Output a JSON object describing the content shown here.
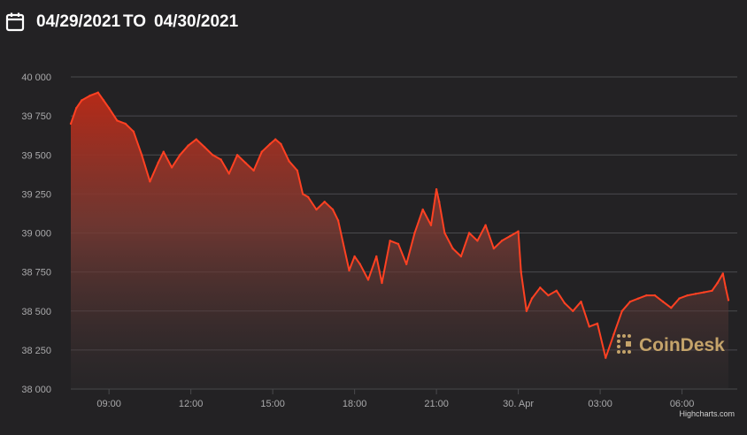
{
  "header": {
    "start_date": "04/29/2021",
    "to_label": "TO",
    "end_date": "04/30/2021",
    "icon": "calendar-icon"
  },
  "watermark": "CoinDesk",
  "credits": "Highcharts.com",
  "colors": {
    "background": "#232224",
    "line": "#ff4122",
    "area_top": "#b52a18",
    "grid": "#4a4a4d",
    "watermark": "#c4a36a"
  },
  "chart_data": {
    "type": "area",
    "title": "",
    "xlabel": "",
    "ylabel": "",
    "ylim": [
      38000,
      40000
    ],
    "grid": true,
    "yticks": [
      {
        "value": 40000,
        "label": "40 000"
      },
      {
        "value": 39750,
        "label": "39 750"
      },
      {
        "value": 39500,
        "label": "39 500"
      },
      {
        "value": 39250,
        "label": "39 250"
      },
      {
        "value": 39000,
        "label": "39 000"
      },
      {
        "value": 38750,
        "label": "38 750"
      },
      {
        "value": 38500,
        "label": "38 500"
      },
      {
        "value": 38250,
        "label": "38 250"
      },
      {
        "value": 38000,
        "label": "38 000"
      }
    ],
    "xlim": [
      7.6,
      31.7
    ],
    "xticks": [
      {
        "value": 9,
        "label": "09:00"
      },
      {
        "value": 12,
        "label": "12:00"
      },
      {
        "value": 15,
        "label": "15:00"
      },
      {
        "value": 18,
        "label": "18:00"
      },
      {
        "value": 21,
        "label": "21:00"
      },
      {
        "value": 24,
        "label": "30. Apr"
      },
      {
        "value": 27,
        "label": "03:00"
      },
      {
        "value": 30,
        "label": "06:00"
      }
    ],
    "series": [
      {
        "x": [
          7.6,
          7.8,
          8.0,
          8.3,
          8.6,
          8.8,
          9.0,
          9.3,
          9.6,
          9.9,
          10.2,
          10.5,
          10.8,
          11.0,
          11.3,
          11.6,
          11.9,
          12.2,
          12.5,
          12.8,
          13.1,
          13.4,
          13.7,
          14.0,
          14.3,
          14.6,
          14.9,
          15.1,
          15.3,
          15.6,
          15.9,
          16.1,
          16.3,
          16.6,
          16.9,
          17.2,
          17.4,
          17.8,
          18.0,
          18.2,
          18.5,
          18.8,
          19.0,
          19.3,
          19.6,
          19.9,
          20.2,
          20.5,
          20.8,
          21.0,
          21.1,
          21.3,
          21.6,
          21.9,
          22.2,
          22.5,
          22.8,
          23.1,
          23.4,
          23.7,
          24.0,
          24.1,
          24.3,
          24.5,
          24.8,
          25.1,
          25.4,
          25.7,
          26.0,
          26.3,
          26.6,
          26.9,
          27.2,
          27.5,
          27.8,
          28.1,
          28.4,
          28.7,
          29.0,
          29.3,
          29.6,
          29.9,
          30.2,
          30.5,
          30.8,
          31.1,
          31.3,
          31.5,
          31.6,
          31.7
        ],
        "values": [
          39700,
          39800,
          39850,
          39880,
          39900,
          39850,
          39800,
          39720,
          39700,
          39650,
          39500,
          39330,
          39450,
          39520,
          39420,
          39500,
          39560,
          39600,
          39550,
          39500,
          39470,
          39380,
          39500,
          39450,
          39400,
          39520,
          39570,
          39600,
          39570,
          39460,
          39400,
          39250,
          39230,
          39150,
          39200,
          39150,
          39080,
          38760,
          38850,
          38800,
          38700,
          38850,
          38680,
          38950,
          38930,
          38800,
          39000,
          39150,
          39050,
          39280,
          39200,
          39000,
          38900,
          38850,
          39000,
          38950,
          39050,
          38900,
          38950,
          38980,
          39010,
          38750,
          38500,
          38580,
          38650,
          38600,
          38630,
          38550,
          38500,
          38560,
          38400,
          38420,
          38200,
          38350,
          38500,
          38560,
          38580,
          38600,
          38600,
          38560,
          38520,
          38580,
          38600,
          38610,
          38620,
          38630,
          38680,
          38740,
          38650,
          38570
        ]
      }
    ]
  }
}
